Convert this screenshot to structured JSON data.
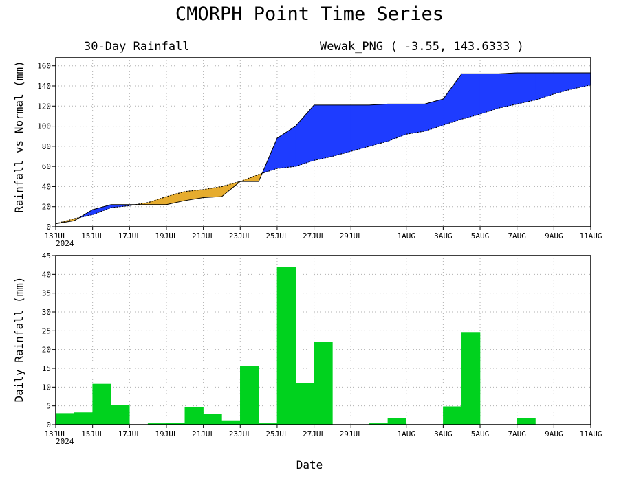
{
  "page": {
    "title": "CMORPH Point Time Series",
    "xlabel": "Date"
  },
  "chart_data": [
    {
      "type": "area",
      "subtitle_left": "30-Day Rainfall",
      "subtitle_right": "Wewak_PNG ( -3.55, 143.6333 )",
      "ylabel": "Rainfall vs Normal (mm)",
      "ylim": [
        0,
        168
      ],
      "yticks": [
        0,
        20,
        40,
        60,
        80,
        100,
        120,
        140,
        160
      ],
      "xlim": [
        "2024-07-13",
        "2024-08-11"
      ],
      "x_ticks": [
        {
          "date": "2024-07-13",
          "label": "13JUL",
          "sublabel": "2024"
        },
        {
          "date": "2024-07-15",
          "label": "15JUL"
        },
        {
          "date": "2024-07-17",
          "label": "17JUL"
        },
        {
          "date": "2024-07-19",
          "label": "19JUL"
        },
        {
          "date": "2024-07-21",
          "label": "21JUL"
        },
        {
          "date": "2024-07-23",
          "label": "23JUL"
        },
        {
          "date": "2024-07-25",
          "label": "25JUL"
        },
        {
          "date": "2024-07-27",
          "label": "27JUL"
        },
        {
          "date": "2024-07-29",
          "label": "29JUL"
        },
        {
          "date": "2024-08-01",
          "label": "1AUG"
        },
        {
          "date": "2024-08-03",
          "label": "3AUG"
        },
        {
          "date": "2024-08-05",
          "label": "5AUG"
        },
        {
          "date": "2024-08-07",
          "label": "7AUG"
        },
        {
          "date": "2024-08-09",
          "label": "9AUG"
        },
        {
          "date": "2024-08-11",
          "label": "11AUG"
        }
      ],
      "dates": [
        "2024-07-13",
        "2024-07-14",
        "2024-07-15",
        "2024-07-16",
        "2024-07-17",
        "2024-07-18",
        "2024-07-19",
        "2024-07-20",
        "2024-07-21",
        "2024-07-22",
        "2024-07-23",
        "2024-07-24",
        "2024-07-25",
        "2024-07-26",
        "2024-07-27",
        "2024-07-28",
        "2024-07-29",
        "2024-07-30",
        "2024-07-31",
        "2024-08-01",
        "2024-08-02",
        "2024-08-03",
        "2024-08-04",
        "2024-08-05",
        "2024-08-06",
        "2024-08-07",
        "2024-08-08",
        "2024-08-09",
        "2024-08-10",
        "2024-08-11"
      ],
      "series": [
        {
          "values": [
            3,
            6,
            17,
            22,
            22,
            22,
            22,
            26,
            29,
            30,
            45,
            45,
            88,
            100,
            121,
            121,
            121,
            121,
            122,
            122,
            122,
            127,
            152,
            152,
            152,
            153,
            153,
            153,
            153,
            153
          ]
        },
        {
          "values": [
            3,
            8,
            12,
            19,
            21,
            24,
            30,
            35,
            37,
            40,
            45,
            52,
            58,
            60,
            66,
            70,
            75,
            80,
            85,
            92,
            95,
            101,
            107,
            112,
            118,
            122,
            126,
            132,
            137,
            141
          ]
        }
      ],
      "colors": {
        "above": "#1e3cff",
        "below": "#e6ac2e",
        "outline": "#000000"
      },
      "grid": true
    },
    {
      "type": "bar",
      "ylabel": "Daily Rainfall (mm)",
      "ylim": [
        0,
        45
      ],
      "yticks": [
        0,
        5,
        10,
        15,
        20,
        25,
        30,
        35,
        40,
        45
      ],
      "xlim": [
        "2024-07-13",
        "2024-08-11"
      ],
      "x_ticks": [
        {
          "date": "2024-07-13",
          "label": "13JUL",
          "sublabel": "2024"
        },
        {
          "date": "2024-07-15",
          "label": "15JUL"
        },
        {
          "date": "2024-07-17",
          "label": "17JUL"
        },
        {
          "date": "2024-07-19",
          "label": "19JUL"
        },
        {
          "date": "2024-07-21",
          "label": "21JUL"
        },
        {
          "date": "2024-07-23",
          "label": "23JUL"
        },
        {
          "date": "2024-07-25",
          "label": "25JUL"
        },
        {
          "date": "2024-07-27",
          "label": "27JUL"
        },
        {
          "date": "2024-07-29",
          "label": "29JUL"
        },
        {
          "date": "2024-08-01",
          "label": "1AUG"
        },
        {
          "date": "2024-08-03",
          "label": "3AUG"
        },
        {
          "date": "2024-08-05",
          "label": "5AUG"
        },
        {
          "date": "2024-08-07",
          "label": "7AUG"
        },
        {
          "date": "2024-08-09",
          "label": "9AUG"
        },
        {
          "date": "2024-08-11",
          "label": "11AUG"
        }
      ],
      "dates": [
        "2024-07-13",
        "2024-07-14",
        "2024-07-15",
        "2024-07-16",
        "2024-07-17",
        "2024-07-18",
        "2024-07-19",
        "2024-07-20",
        "2024-07-21",
        "2024-07-22",
        "2024-07-23",
        "2024-07-24",
        "2024-07-25",
        "2024-07-26",
        "2024-07-27",
        "2024-07-28",
        "2024-07-29",
        "2024-07-30",
        "2024-07-31",
        "2024-08-01",
        "2024-08-02",
        "2024-08-03",
        "2024-08-04",
        "2024-08-05",
        "2024-08-06",
        "2024-08-07",
        "2024-08-08",
        "2024-08-09",
        "2024-08-10"
      ],
      "values": [
        3,
        3.2,
        10.8,
        5.2,
        0,
        0.3,
        0.5,
        4.6,
        2.8,
        1.1,
        15.5,
        0.3,
        42,
        11,
        22,
        0,
        0,
        0.3,
        1.6,
        0,
        0,
        4.8,
        24.6,
        0,
        0,
        1.6,
        0,
        0,
        0
      ],
      "colors": {
        "bar": "#00d21e"
      },
      "grid": true
    }
  ]
}
